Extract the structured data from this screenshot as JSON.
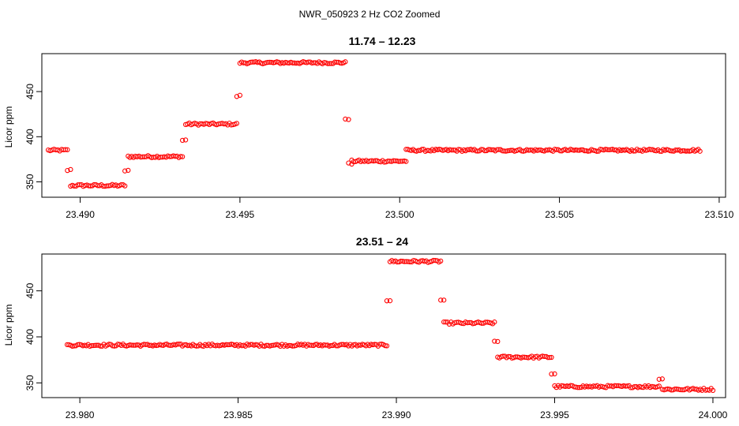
{
  "page_title": "NWR_050923  2 Hz CO2 Zoomed",
  "colors": {
    "points": "#ff0000",
    "axes": "#000000",
    "background": "#ffffff"
  },
  "chart_data": [
    {
      "type": "scatter",
      "title": "11.74 – 12.23",
      "xlabel": "",
      "ylabel": "Licor ppm",
      "xlim": [
        23.4888,
        23.5102
      ],
      "ylim": [
        333,
        492
      ],
      "x_ticks": [
        23.49,
        23.495,
        23.5,
        23.505,
        23.51
      ],
      "x_tick_labels": [
        "23.490",
        "23.495",
        "23.500",
        "23.505",
        "23.510"
      ],
      "y_ticks": [
        350,
        400,
        450
      ],
      "y_tick_labels": [
        "350",
        "400",
        "450"
      ],
      "grid": false,
      "marker": "open-circle",
      "series": [
        {
          "color": "#ff0000",
          "segments": [
            {
              "x_start": 23.489,
              "x_end": 23.4896,
              "y": 385
            },
            {
              "x_start": 23.4896,
              "x_end": 23.4897,
              "y": 363
            },
            {
              "x_start": 23.4897,
              "x_end": 23.4914,
              "y": 346
            },
            {
              "x_start": 23.4914,
              "x_end": 23.4915,
              "y": 362
            },
            {
              "x_start": 23.4915,
              "x_end": 23.4932,
              "y": 378
            },
            {
              "x_start": 23.4932,
              "x_end": 23.4933,
              "y": 396
            },
            {
              "x_start": 23.4933,
              "x_end": 23.4949,
              "y": 414
            },
            {
              "x_start": 23.4949,
              "x_end": 23.495,
              "y": 445
            },
            {
              "x_start": 23.495,
              "x_end": 23.4983,
              "y": 482
            },
            {
              "x_start": 23.4983,
              "x_end": 23.4984,
              "y": 420
            },
            {
              "x_start": 23.4984,
              "x_end": 23.4985,
              "y": 370
            },
            {
              "x_start": 23.4985,
              "x_end": 23.5002,
              "y": 373
            },
            {
              "x_start": 23.5002,
              "x_end": 23.5094,
              "y": 385
            }
          ]
        }
      ]
    },
    {
      "type": "scatter",
      "title": "23.51 – 24",
      "xlabel": "",
      "ylabel": "Licor ppm",
      "xlim": [
        23.9788,
        24.0004
      ],
      "ylim": [
        334,
        490
      ],
      "x_ticks": [
        23.98,
        23.985,
        23.99,
        23.995,
        24.0
      ],
      "x_tick_labels": [
        "23.980",
        "23.985",
        "23.990",
        "23.995",
        "24.000"
      ],
      "y_ticks": [
        350,
        400,
        450
      ],
      "y_tick_labels": [
        "350",
        "400",
        "450"
      ],
      "grid": false,
      "marker": "open-circle",
      "series": [
        {
          "color": "#ff0000",
          "segments": [
            {
              "x_start": 23.9796,
              "x_end": 23.9897,
              "y": 391
            },
            {
              "x_start": 23.9897,
              "x_end": 23.9898,
              "y": 440
            },
            {
              "x_start": 23.9898,
              "x_end": 23.9914,
              "y": 482
            },
            {
              "x_start": 23.9914,
              "x_end": 23.9915,
              "y": 440
            },
            {
              "x_start": 23.9915,
              "x_end": 23.9931,
              "y": 415
            },
            {
              "x_start": 23.9931,
              "x_end": 23.9932,
              "y": 395
            },
            {
              "x_start": 23.9932,
              "x_end": 23.9949,
              "y": 378
            },
            {
              "x_start": 23.9949,
              "x_end": 23.995,
              "y": 360
            },
            {
              "x_start": 23.995,
              "x_end": 23.9983,
              "y": 346
            },
            {
              "x_start": 23.9983,
              "x_end": 23.9984,
              "y": 355
            },
            {
              "x_start": 23.9984,
              "x_end": 24.0,
              "y": 343
            }
          ]
        }
      ]
    }
  ]
}
